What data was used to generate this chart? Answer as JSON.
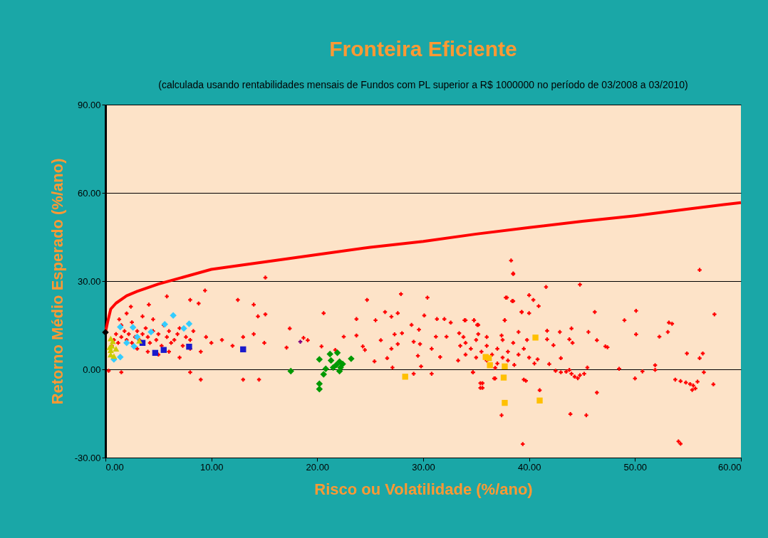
{
  "chart_data": {
    "type": "scatter",
    "title": "Fronteira Eficiente",
    "subtitle": "(calculada usando rentabilidades mensais de Fundos com PL superior a R$ 1000000 no período de 03/2008 a 03/2010)",
    "xlabel": "Risco ou Volatilidade (%/ano)",
    "ylabel": "Retorno Médio Esperado (%/ano)",
    "xlim": [
      0,
      60
    ],
    "ylim": [
      -30,
      90
    ],
    "xticks": [
      {
        "value": 0,
        "label": "0.00"
      },
      {
        "value": 10,
        "label": "10.00"
      },
      {
        "value": 20,
        "label": "20.00"
      },
      {
        "value": 30,
        "label": "30.00"
      },
      {
        "value": 40,
        "label": "40.00"
      },
      {
        "value": 50,
        "label": "50.00"
      },
      {
        "value": 60,
        "label": "60.00"
      }
    ],
    "yticks": [
      {
        "value": -30,
        "label": "-30.00"
      },
      {
        "value": 0,
        "label": "0.00"
      },
      {
        "value": 30,
        "label": "30.00"
      },
      {
        "value": 60,
        "label": "60.00"
      },
      {
        "value": 90,
        "label": "90.00"
      }
    ],
    "grid": "y",
    "legend": false,
    "series": [
      {
        "marker": "cross",
        "color": "#ff0000",
        "x": [
          0.8,
          1,
          1.2,
          1.5,
          1.8,
          2,
          2.2,
          2.5,
          2.8,
          3,
          3.2,
          3.5,
          3.8,
          4,
          4.2,
          4.5,
          4.8,
          5,
          5.3,
          5.5,
          5.8,
          6,
          6.2,
          6.5,
          6.8,
          7,
          7.3,
          7.6,
          8,
          8.3,
          1.5,
          2.5,
          3.5,
          4.5,
          2,
          1.3,
          0.6,
          3,
          4,
          5,
          6,
          7,
          8,
          9,
          10,
          9.5,
          11,
          12,
          13,
          14,
          15,
          5.8,
          8,
          8.8,
          9.4,
          12.5,
          14,
          15.1,
          15.1,
          14.4,
          2.4,
          4.1,
          0.3,
          1.5,
          8,
          9,
          13,
          14.5,
          17.4,
          19.1,
          17.1,
          20.4,
          24.3,
          24.5,
          25.5,
          27,
          30.4,
          29.6,
          32,
          25.4,
          37.4,
          39.4,
          38.3,
          57.4,
          47.4,
          45.2
        ],
        "values": [
          10,
          12,
          9,
          11,
          13,
          10,
          12,
          9,
          11,
          13,
          10,
          12,
          14,
          11,
          9,
          13,
          10,
          12,
          8,
          15,
          11,
          13,
          9,
          10,
          12,
          14,
          8,
          11,
          10,
          13,
          15,
          16,
          18,
          17,
          19,
          17,
          8,
          7,
          6,
          5,
          6,
          4,
          7,
          6,
          9,
          11,
          10,
          8,
          11,
          12,
          9,
          24.8,
          23.6,
          22.4,
          26.8,
          23.6,
          22,
          31.2,
          18.7,
          18,
          21.3,
          22,
          -0.5,
          -1,
          -1,
          -3.5,
          -3.5,
          -3.5,
          13.9,
          9.9,
          7.4,
          7.8,
          7.8,
          6.6,
          16.7,
          17.9,
          24.4,
          13.5,
          17.1,
          2.7,
          -15.6,
          -25.4,
          37,
          -5.1,
          7.5,
          -1.5
        ]
      },
      {
        "marker": "cross",
        "color": "#ff0000",
        "x": [
          20.6,
          24.7,
          27.9,
          18.7,
          21.7,
          22.5,
          23.7,
          23.7,
          26.4,
          27.6,
          26,
          27.3,
          28,
          27.6,
          27,
          26.6,
          27.1,
          28.9,
          29.1,
          29.7,
          29.5,
          29.8,
          29.1,
          30.1,
          30.8,
          31.3,
          31.2,
          31.6,
          30.8,
          32.2,
          32.6,
          33.4,
          33.3,
          34,
          34.8,
          35.1,
          34.7,
          35.4,
          35.4,
          37.7,
          37.8,
          38.5,
          39.3,
          38.5,
          36.7,
          39.5,
          39,
          33.5,
          34,
          34.5,
          35,
          35.5,
          36,
          36.5,
          37,
          37.5,
          38,
          38.5,
          39,
          34,
          35,
          36,
          37,
          37.5,
          38,
          39.5,
          40,
          36,
          33.8,
          35.2,
          37.4,
          38.6,
          36.8,
          40.5,
          39.8,
          38.5,
          41.6,
          44.8,
          37.9,
          38.4,
          40,
          40.4,
          40.9,
          39.3,
          40,
          33.9,
          34.8,
          35.2,
          37.7,
          46.2,
          50.1,
          57.5,
          56.1,
          49,
          53.2,
          53.5,
          53.1,
          50.1,
          52.3,
          54.9,
          56.4,
          56.1,
          56.5,
          43,
          44,
          43.8,
          44.1,
          42.9,
          45.6,
          46.4,
          47.2,
          41.7,
          41.7,
          42.3,
          41.9,
          40.8,
          41,
          39.7,
          46.4,
          43.9,
          45.4,
          54.1,
          54.3,
          48.5,
          50,
          50.7,
          51.9,
          51.9,
          45.5,
          35.6,
          35.6,
          36.8,
          34.7,
          42.5,
          43,
          43.5,
          44,
          44.3,
          44.6,
          43.8,
          44.8,
          53.8,
          54.3,
          54.8,
          55.2,
          55.5,
          55.7,
          55.4,
          55.9
        ],
        "values": [
          19.1,
          23.6,
          25.6,
          10.7,
          6.6,
          11.1,
          17.1,
          11.5,
          19.5,
          19.1,
          9.9,
          11.9,
          12.3,
          8.6,
          7,
          3.8,
          0.6,
          15.1,
          9.4,
          8.6,
          4.6,
          1,
          -1.5,
          18.3,
          7,
          17.1,
          11.1,
          4.2,
          -1.5,
          11.1,
          15.9,
          12.3,
          3,
          16.7,
          16.7,
          15.1,
          -1,
          -4.7,
          -6.3,
          16.7,
          24.4,
          23.2,
          19.5,
          32.4,
          -3.1,
          -3.5,
          12.7,
          8,
          9,
          7,
          10,
          6,
          8,
          5,
          7,
          4,
          6,
          9,
          5,
          5,
          4,
          3,
          2,
          10,
          3,
          7,
          4,
          11,
          11,
          12,
          11.5,
          1.5,
          0.5,
          2,
          10,
          32.6,
          28,
          28.8,
          24.4,
          23.2,
          25.2,
          23.6,
          21.5,
          19.5,
          19.1,
          16.7,
          16.7,
          15.1,
          16.7,
          19.5,
          19.9,
          18.7,
          33.8,
          16.7,
          15.9,
          15.5,
          12.7,
          11.9,
          11.1,
          5.4,
          5.4,
          3.8,
          -1,
          3.8,
          13.9,
          10.2,
          9,
          12.7,
          12.7,
          9.9,
          7.8,
          13.1,
          10.2,
          8.2,
          1.8,
          3.4,
          -7.1,
          -3.9,
          -7.9,
          -15.2,
          -15.6,
          -24.5,
          -25.3,
          0.2,
          -3.1,
          -0.7,
          1.4,
          -0.2,
          0.6,
          -4.7,
          -6.3,
          -3.1,
          -1,
          -0.5,
          -1,
          -0.8,
          -1.5,
          -2.5,
          -3,
          -0.2,
          -2,
          -3.5,
          -4,
          -4.5,
          -5,
          -5.5,
          -6.5,
          -7,
          -4.2
        ]
      },
      {
        "marker": "diamond",
        "color": "#33ccff",
        "x": [
          6.4,
          7.9,
          5.6,
          7.4,
          1.4,
          1.4,
          0.8,
          2.7,
          4.3,
          2.6,
          3,
          2
        ],
        "values": [
          18.3,
          15.5,
          15.3,
          13.9,
          14.4,
          4.2,
          3.4,
          7.8,
          12.7,
          14.3,
          11,
          9
        ]
      },
      {
        "marker": "square",
        "color": "#1a1acc",
        "x": [
          4.7,
          5.5,
          7.9,
          13,
          3.5
        ],
        "values": [
          5.6,
          6.6,
          7.7,
          6.8,
          9
        ]
      },
      {
        "marker": "triangle",
        "color": "#cccc00",
        "x": [
          0.5,
          0.5,
          0.6,
          0.7,
          0.5,
          0.8,
          0.4,
          3.2,
          1
        ],
        "values": [
          5,
          6.5,
          8,
          9.5,
          10.5,
          4.5,
          7.5,
          9.7,
          7
        ]
      },
      {
        "marker": "diamond",
        "color": "#009900",
        "x": [
          17.5,
          20.2,
          21.2,
          21.9,
          21.3,
          23.2,
          20.8,
          20.6,
          20.2,
          20.2,
          21.5,
          22.1,
          22.2,
          22.4,
          22.1,
          21.8
        ],
        "values": [
          -0.6,
          3.4,
          5.2,
          5.6,
          3,
          3.6,
          0.2,
          -1.7,
          -4.9,
          -6.7,
          0.6,
          2.6,
          0.6,
          1.8,
          -0.6,
          1.5
        ]
      },
      {
        "marker": "square",
        "color": "#ffc000",
        "x": [
          28.3,
          37.7,
          37.6,
          40.6,
          41,
          36.2,
          36.3,
          37.7,
          35.9
        ],
        "values": [
          -2.5,
          -11.4,
          -2.8,
          10.8,
          -10.6,
          3.8,
          1.4,
          1,
          4.2
        ]
      },
      {
        "marker": "cross",
        "color": "#800080",
        "x": [
          18.4
        ],
        "values": [
          9.4
        ]
      },
      {
        "type": "line",
        "marker": "none",
        "line_style": "solid",
        "color": "#ff0000",
        "x": [
          0,
          0.2,
          0.5,
          1,
          2,
          3,
          5,
          7,
          10,
          13,
          17,
          20,
          25,
          30,
          35,
          40,
          45,
          50,
          55,
          60
        ],
        "values": [
          12.6,
          16,
          20.5,
          22.5,
          25,
          26.5,
          29,
          31,
          34,
          35.5,
          37.5,
          39,
          41.5,
          43.5,
          46,
          48.2,
          50.3,
          52.2,
          54.5,
          56.7
        ]
      },
      {
        "marker": "diamond",
        "color": "#000000",
        "x": [
          0
        ],
        "values": [
          12.6
        ]
      }
    ]
  }
}
